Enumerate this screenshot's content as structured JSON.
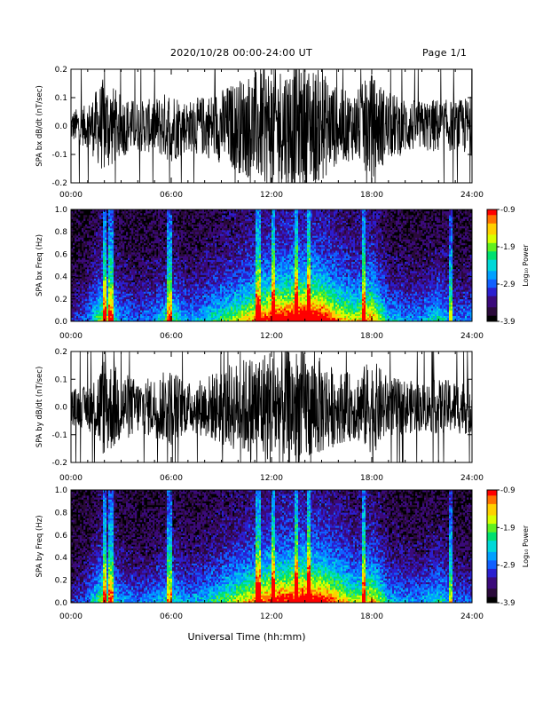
{
  "header": {
    "title": "2020/10/28  00:00-24:00 UT",
    "page": "Page 1/1"
  },
  "footer": {
    "xlabel": "Universal Time (hh:mm)"
  },
  "colors": {
    "background": "#ffffff",
    "trace": "#000000",
    "colormap": [
      "#000000",
      "#2a0a3a",
      "#3b0a7a",
      "#2b1fcf",
      "#1060ff",
      "#00a0ff",
      "#00d8d8",
      "#00e070",
      "#60f020",
      "#d8ff00",
      "#ffd000",
      "#ff7000",
      "#ff0000"
    ]
  },
  "chart_data": [
    {
      "type": "line",
      "ylabel": "SPA bx dB/dt (nT/sec)",
      "ylim": [
        -0.2,
        0.2
      ],
      "yticks": [
        "-0.2",
        "-0.1",
        "0.0",
        "0.1",
        "0.2"
      ],
      "xlim": [
        0,
        24
      ],
      "xticks": [
        "00:00",
        "06:00",
        "12:00",
        "18:00",
        "24:00"
      ],
      "series": [
        {
          "x_hours": [
            0,
            1,
            2,
            3,
            4,
            5,
            6,
            7,
            8,
            9,
            10,
            11,
            12,
            13,
            14,
            15,
            16,
            17,
            18,
            19,
            20,
            21,
            22,
            23,
            24
          ],
          "amplitude": [
            0.05,
            0.07,
            0.16,
            0.1,
            0.08,
            0.09,
            0.12,
            0.08,
            0.1,
            0.12,
            0.15,
            0.18,
            0.2,
            0.2,
            0.2,
            0.18,
            0.12,
            0.11,
            0.17,
            0.11,
            0.09,
            0.08,
            0.09,
            0.08,
            0.1
          ]
        }
      ]
    },
    {
      "type": "heatmap",
      "ylabel": "SPA bx Freq (Hz)",
      "ylim": [
        0,
        1.0
      ],
      "yticks": [
        "0.0",
        "0.2",
        "0.4",
        "0.6",
        "0.8",
        "1.0"
      ],
      "xlim": [
        0,
        24
      ],
      "xticks": [
        "00:00",
        "06:00",
        "12:00",
        "18:00",
        "24:00"
      ],
      "colorbar": {
        "label": "Log₁₀ Power",
        "range": [
          -3.9,
          -0.9
        ],
        "ticks": [
          "-0.9",
          "-1.9",
          "-2.9",
          "-3.9"
        ]
      },
      "activity_by_hour": [
        0.15,
        0.25,
        0.6,
        0.3,
        0.25,
        0.3,
        0.45,
        0.3,
        0.35,
        0.45,
        0.55,
        0.65,
        0.8,
        0.85,
        0.9,
        0.85,
        0.65,
        0.55,
        0.7,
        0.35,
        0.3,
        0.3,
        0.4,
        0.25,
        0.3
      ],
      "bright_columns_hours": [
        2.0,
        2.4,
        5.9,
        11.2,
        12.1,
        13.5,
        14.2,
        17.5,
        22.7
      ]
    },
    {
      "type": "line",
      "ylabel": "SPA by dB/dt (nT/sec)",
      "ylim": [
        -0.2,
        0.2
      ],
      "yticks": [
        "-0.2",
        "-0.1",
        "0.0",
        "0.1",
        "0.2"
      ],
      "xlim": [
        0,
        24
      ],
      "xticks": [
        "00:00",
        "06:00",
        "12:00",
        "18:00",
        "24:00"
      ],
      "series": [
        {
          "x_hours": [
            0,
            1,
            2,
            3,
            4,
            5,
            6,
            7,
            8,
            9,
            10,
            11,
            12,
            13,
            14,
            15,
            16,
            17,
            18,
            19,
            20,
            21,
            22,
            23,
            24
          ],
          "amplitude": [
            0.06,
            0.07,
            0.17,
            0.12,
            0.09,
            0.1,
            0.13,
            0.08,
            0.1,
            0.13,
            0.15,
            0.18,
            0.2,
            0.2,
            0.19,
            0.16,
            0.12,
            0.11,
            0.16,
            0.1,
            0.09,
            0.08,
            0.09,
            0.09,
            0.09
          ]
        }
      ]
    },
    {
      "type": "heatmap",
      "ylabel": "SPA by Freq (Hz)",
      "ylim": [
        0,
        1.0
      ],
      "yticks": [
        "0.0",
        "0.2",
        "0.4",
        "0.6",
        "0.8",
        "1.0"
      ],
      "xlim": [
        0,
        24
      ],
      "xticks": [
        "00:00",
        "06:00",
        "12:00",
        "18:00",
        "24:00"
      ],
      "colorbar": {
        "label": "Log₁₀ Power",
        "range": [
          -3.9,
          -0.9
        ],
        "ticks": [
          "-0.9",
          "-1.9",
          "-2.9",
          "-3.9"
        ]
      },
      "activity_by_hour": [
        0.15,
        0.25,
        0.55,
        0.3,
        0.25,
        0.3,
        0.4,
        0.3,
        0.35,
        0.45,
        0.55,
        0.65,
        0.75,
        0.8,
        0.85,
        0.8,
        0.65,
        0.5,
        0.65,
        0.35,
        0.3,
        0.3,
        0.4,
        0.25,
        0.25
      ],
      "bright_columns_hours": [
        2.0,
        2.4,
        5.9,
        11.2,
        12.1,
        13.5,
        14.2,
        17.5,
        22.7
      ]
    }
  ]
}
